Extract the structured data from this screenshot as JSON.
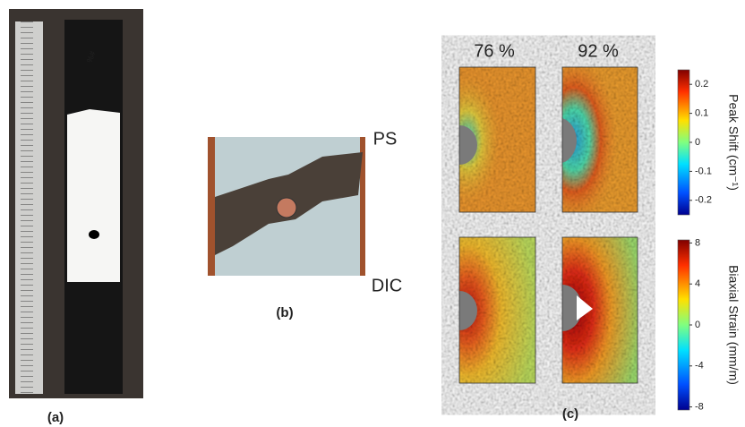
{
  "panels": {
    "a": {
      "label": "(a)"
    },
    "b": {
      "label": "(b)"
    },
    "c": {
      "label": "(c)",
      "columns": [
        "76 %",
        "92 %"
      ],
      "rows": [
        "PS",
        "DIC"
      ],
      "colorbars": [
        {
          "label": "Peak Shift (cm⁻¹)",
          "lim": [
            -0.25,
            0.25
          ],
          "ticks": [
            0.2,
            0.1,
            0,
            -0.1,
            -0.2
          ]
        },
        {
          "label": "Biaxial Strain (mm/m)",
          "lim": [
            -8.3,
            8.3
          ],
          "ticks": [
            8,
            4,
            0,
            -4,
            -8
          ]
        }
      ]
    }
  }
}
